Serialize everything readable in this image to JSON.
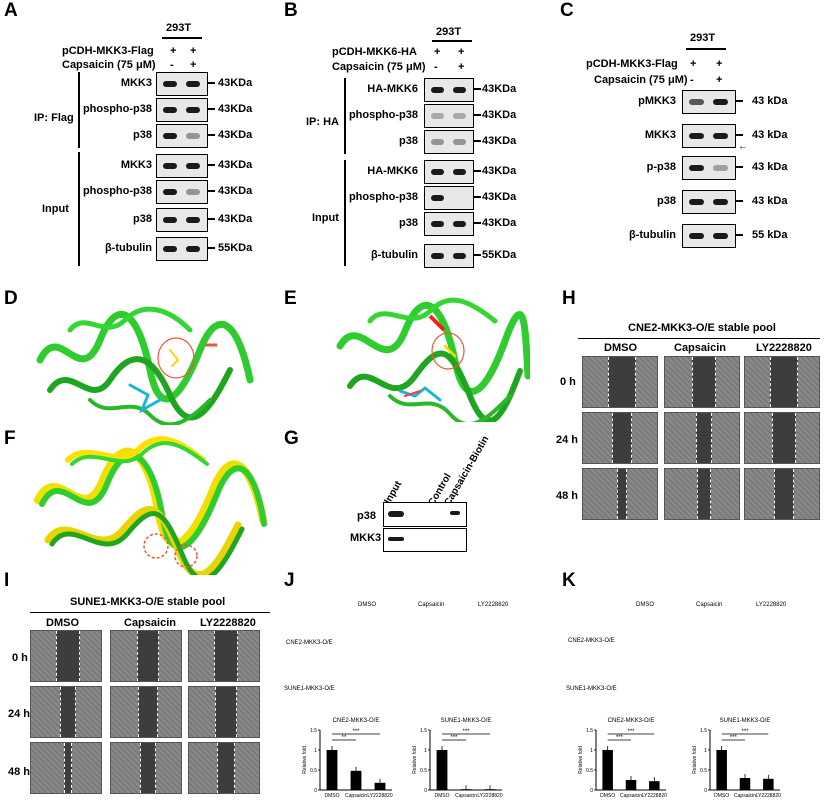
{
  "panels": {
    "A": "A",
    "B": "B",
    "C": "C",
    "D": "D",
    "E": "E",
    "F": "F",
    "G": "G",
    "H": "H",
    "I": "I",
    "J": "J",
    "K": "K"
  },
  "panelA": {
    "cell": "293T",
    "cond1": "pCDH-MKK3-Flag",
    "cond1_vals": [
      "+",
      "+"
    ],
    "cond2": "Capsaicin (75 μM)",
    "cond2_vals": [
      "-",
      "+"
    ],
    "ip_label": "IP: Flag",
    "input_label": "Input",
    "rows": [
      "MKK3",
      "phospho-p38",
      "p38",
      "MKK3",
      "phospho-p38",
      "p38",
      "β-tubulin"
    ],
    "mw": [
      "43KDa",
      "43KDa",
      "43KDa",
      "43KDa",
      "43KDa",
      "43KDa",
      "55KDa"
    ]
  },
  "panelB": {
    "cell": "293T",
    "cond1": "pCDH-MKK6-HA",
    "cond1_vals": [
      "+",
      "+"
    ],
    "cond2": "Capsaicin (75 μM)",
    "cond2_vals": [
      "-",
      "+"
    ],
    "ip_label": "IP: HA",
    "input_label": "Input",
    "rows": [
      "HA-MKK6",
      "phospho-p38",
      "p38",
      "HA-MKK6",
      "phospho-p38",
      "p38",
      "β-tubulin"
    ],
    "mw": [
      "43KDa",
      "43KDa",
      "43KDa",
      "43KDa",
      "43KDa",
      "43KDa",
      "55KDa"
    ]
  },
  "panelC": {
    "cell": "293T",
    "cond1": "pCDH-MKK3-Flag",
    "cond1_vals": [
      "+",
      "+"
    ],
    "cond2": "Capsaicin (75 μM)",
    "cond2_vals": [
      "-",
      "+"
    ],
    "rows": [
      "pMKK3",
      "MKK3",
      "p-p38",
      "p38",
      "β-tubulin"
    ],
    "mw": [
      "43 kDa",
      "43 kDa",
      "43 kDa",
      "43 kDa",
      "55 kDa"
    ]
  },
  "panelG": {
    "cols": [
      "Input",
      "Control",
      "Capsaicin-Biotin"
    ],
    "rows": [
      "p38",
      "MKK3"
    ]
  },
  "panelH": {
    "title": "CNE2-MKK3-O/E stable pool",
    "cols": [
      "DMSO",
      "Capsaicin",
      "LY2228820"
    ],
    "rows": [
      "0 h",
      "24 h",
      "48 h"
    ]
  },
  "panelI": {
    "title": "SUNE1-MKK3-O/E stable pool",
    "cols": [
      "DMSO",
      "Capsaicin",
      "LY2228820"
    ],
    "rows": [
      "0 h",
      "24 h",
      "48 h"
    ]
  },
  "panelJ": {
    "cols": [
      "DMSO",
      "Capsaicin",
      "LY2228820"
    ],
    "rows": [
      "CNE2-MKK3-O/E",
      "SUNE1-MKK3-O/E"
    ],
    "sig": [
      "**",
      "***",
      "***",
      "***"
    ]
  },
  "panelK": {
    "cols": [
      "DMSO",
      "Capsaicin",
      "LY2228820"
    ],
    "rows": [
      "CNE2-MKK3-O/E",
      "SUNE1-MKK3-O/E"
    ],
    "sig": [
      "***",
      "***",
      "***",
      "***"
    ]
  },
  "chart_data": [
    {
      "type": "bar",
      "title": "CNE2-MKK3-O/E",
      "ylabel": "Relative fold",
      "categories": [
        "DMSO",
        "Capsaicin",
        "LY2228820"
      ],
      "values": [
        1.0,
        0.48,
        0.18
      ],
      "ylim": [
        0,
        1.5
      ],
      "yticks": [
        "0",
        "0.5",
        "1",
        "1.5"
      ]
    },
    {
      "type": "bar",
      "title": "SUNE1-MKK3-O/E",
      "ylabel": "Relative fold",
      "categories": [
        "DMSO",
        "Capsaicin",
        "LY2228820"
      ],
      "values": [
        1.0,
        0.02,
        0.02
      ],
      "ylim": [
        0,
        1.5
      ],
      "yticks": [
        "0",
        "0.5",
        "1",
        "1.5"
      ]
    },
    {
      "type": "bar",
      "title": "CNE2-MKK3-O/E",
      "ylabel": "Relative fold",
      "categories": [
        "DMSO",
        "Capsaicin",
        "LY2228820"
      ],
      "values": [
        1.0,
        0.25,
        0.22
      ],
      "ylim": [
        0,
        1.5
      ],
      "yticks": [
        "0",
        "0.5",
        "1",
        "1.5"
      ]
    },
    {
      "type": "bar",
      "title": "SUNE1-MKK3-O/E",
      "ylabel": "Relative fold",
      "categories": [
        "DMSO",
        "Capsaicin",
        "LY2228820"
      ],
      "values": [
        1.0,
        0.3,
        0.28
      ],
      "ylim": [
        0,
        1.5
      ],
      "yticks": [
        "0",
        "0.5",
        "1",
        "1.5"
      ]
    }
  ]
}
